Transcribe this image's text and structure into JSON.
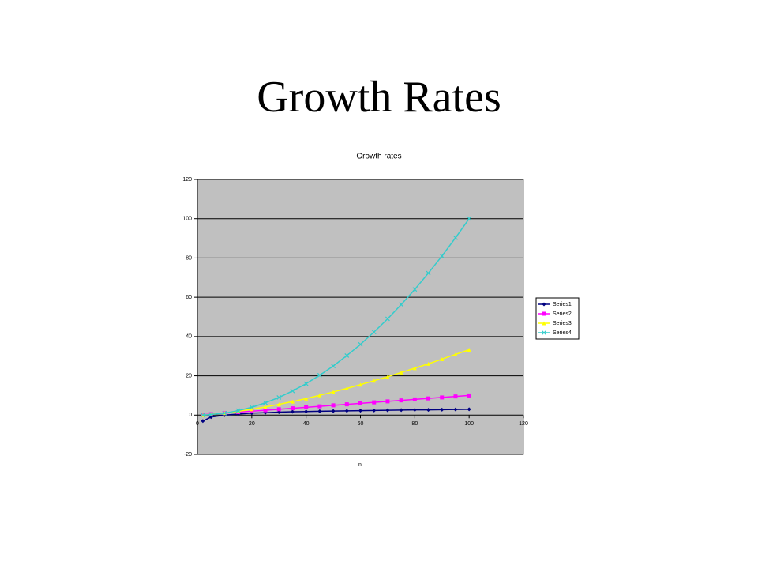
{
  "slide_title": "Growth Rates",
  "chart_data": {
    "type": "line",
    "title": "Growth rates",
    "x_label": "n",
    "x": [
      2,
      5,
      10,
      15,
      20,
      25,
      30,
      35,
      40,
      45,
      50,
      55,
      60,
      65,
      70,
      75,
      80,
      85,
      90,
      95,
      100
    ],
    "series": [
      {
        "name": "Series1",
        "color": "#000080",
        "marker": "diamond",
        "values": [
          -3,
          -1,
          0,
          0.5,
          1,
          1.2,
          1.5,
          1.7,
          1.8,
          2,
          2.1,
          2.2,
          2.3,
          2.4,
          2.5,
          2.6,
          2.7,
          2.7,
          2.8,
          2.9,
          3
        ]
      },
      {
        "name": "Series2",
        "color": "#ff00ff",
        "marker": "square",
        "values": [
          0.2,
          0.5,
          1,
          1.5,
          2,
          2.5,
          3,
          3.5,
          4,
          4.5,
          5,
          5.5,
          6,
          6.5,
          7,
          7.5,
          8,
          8.5,
          9,
          9.5,
          10
        ]
      },
      {
        "name": "Series3",
        "color": "#ffff00",
        "marker": "triangle",
        "values": [
          0,
          0.4,
          1,
          1.9,
          3,
          4.2,
          5.5,
          6.9,
          8.4,
          10.1,
          11.8,
          13.6,
          15.5,
          17.5,
          19.5,
          21.7,
          23.9,
          26.1,
          28.5,
          30.9,
          33.3
        ]
      },
      {
        "name": "Series4",
        "color": "#33cccc",
        "marker": "x",
        "values": [
          0,
          0.3,
          1,
          2.3,
          4,
          6.3,
          9,
          12.3,
          16,
          20.3,
          25,
          30.3,
          36,
          42.3,
          49,
          56.3,
          64,
          72.3,
          81,
          90.3,
          100
        ]
      }
    ],
    "xlim": [
      0,
      120
    ],
    "xticks": [
      0,
      20,
      40,
      60,
      80,
      100,
      120
    ],
    "ylim": [
      -20,
      120
    ],
    "yticks": [
      -20,
      0,
      20,
      40,
      60,
      80,
      100,
      120
    ],
    "grid": true,
    "legend": "right",
    "background": "#c0c0c0"
  }
}
